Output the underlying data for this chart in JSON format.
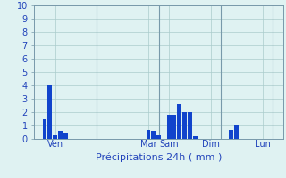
{
  "bar_color": "#1144cc",
  "bg_color": "#dff2f2",
  "grid_color": "#aacccc",
  "tick_label_color": "#2244bb",
  "vline_color": "#7799aa",
  "ylim": [
    0,
    10
  ],
  "yticks": [
    0,
    1,
    2,
    3,
    4,
    5,
    6,
    7,
    8,
    9,
    10
  ],
  "day_labels": [
    "Ven",
    "Mar",
    "Sam",
    "Dim",
    "Lun"
  ],
  "n_total": 48,
  "bar_indices": [
    2,
    3,
    4,
    5,
    6,
    22,
    23,
    24,
    26,
    27,
    28,
    29,
    30,
    31,
    38,
    39
  ],
  "bar_heights": [
    1.5,
    4.0,
    0.3,
    0.6,
    0.5,
    0.7,
    0.6,
    0.3,
    1.8,
    1.8,
    2.6,
    2.0,
    2.0,
    0.2,
    0.7,
    1.0
  ],
  "day_tick_positions": [
    4,
    22,
    26,
    34,
    44
  ],
  "vline_positions": [
    12,
    24,
    36,
    46
  ],
  "xlabel": "Précipitations 24h ( mm )",
  "xlabel_color": "#2244bb",
  "xlabel_fontsize": 8,
  "ytick_fontsize": 7,
  "xtick_fontsize": 7,
  "bar_width": 0.85
}
